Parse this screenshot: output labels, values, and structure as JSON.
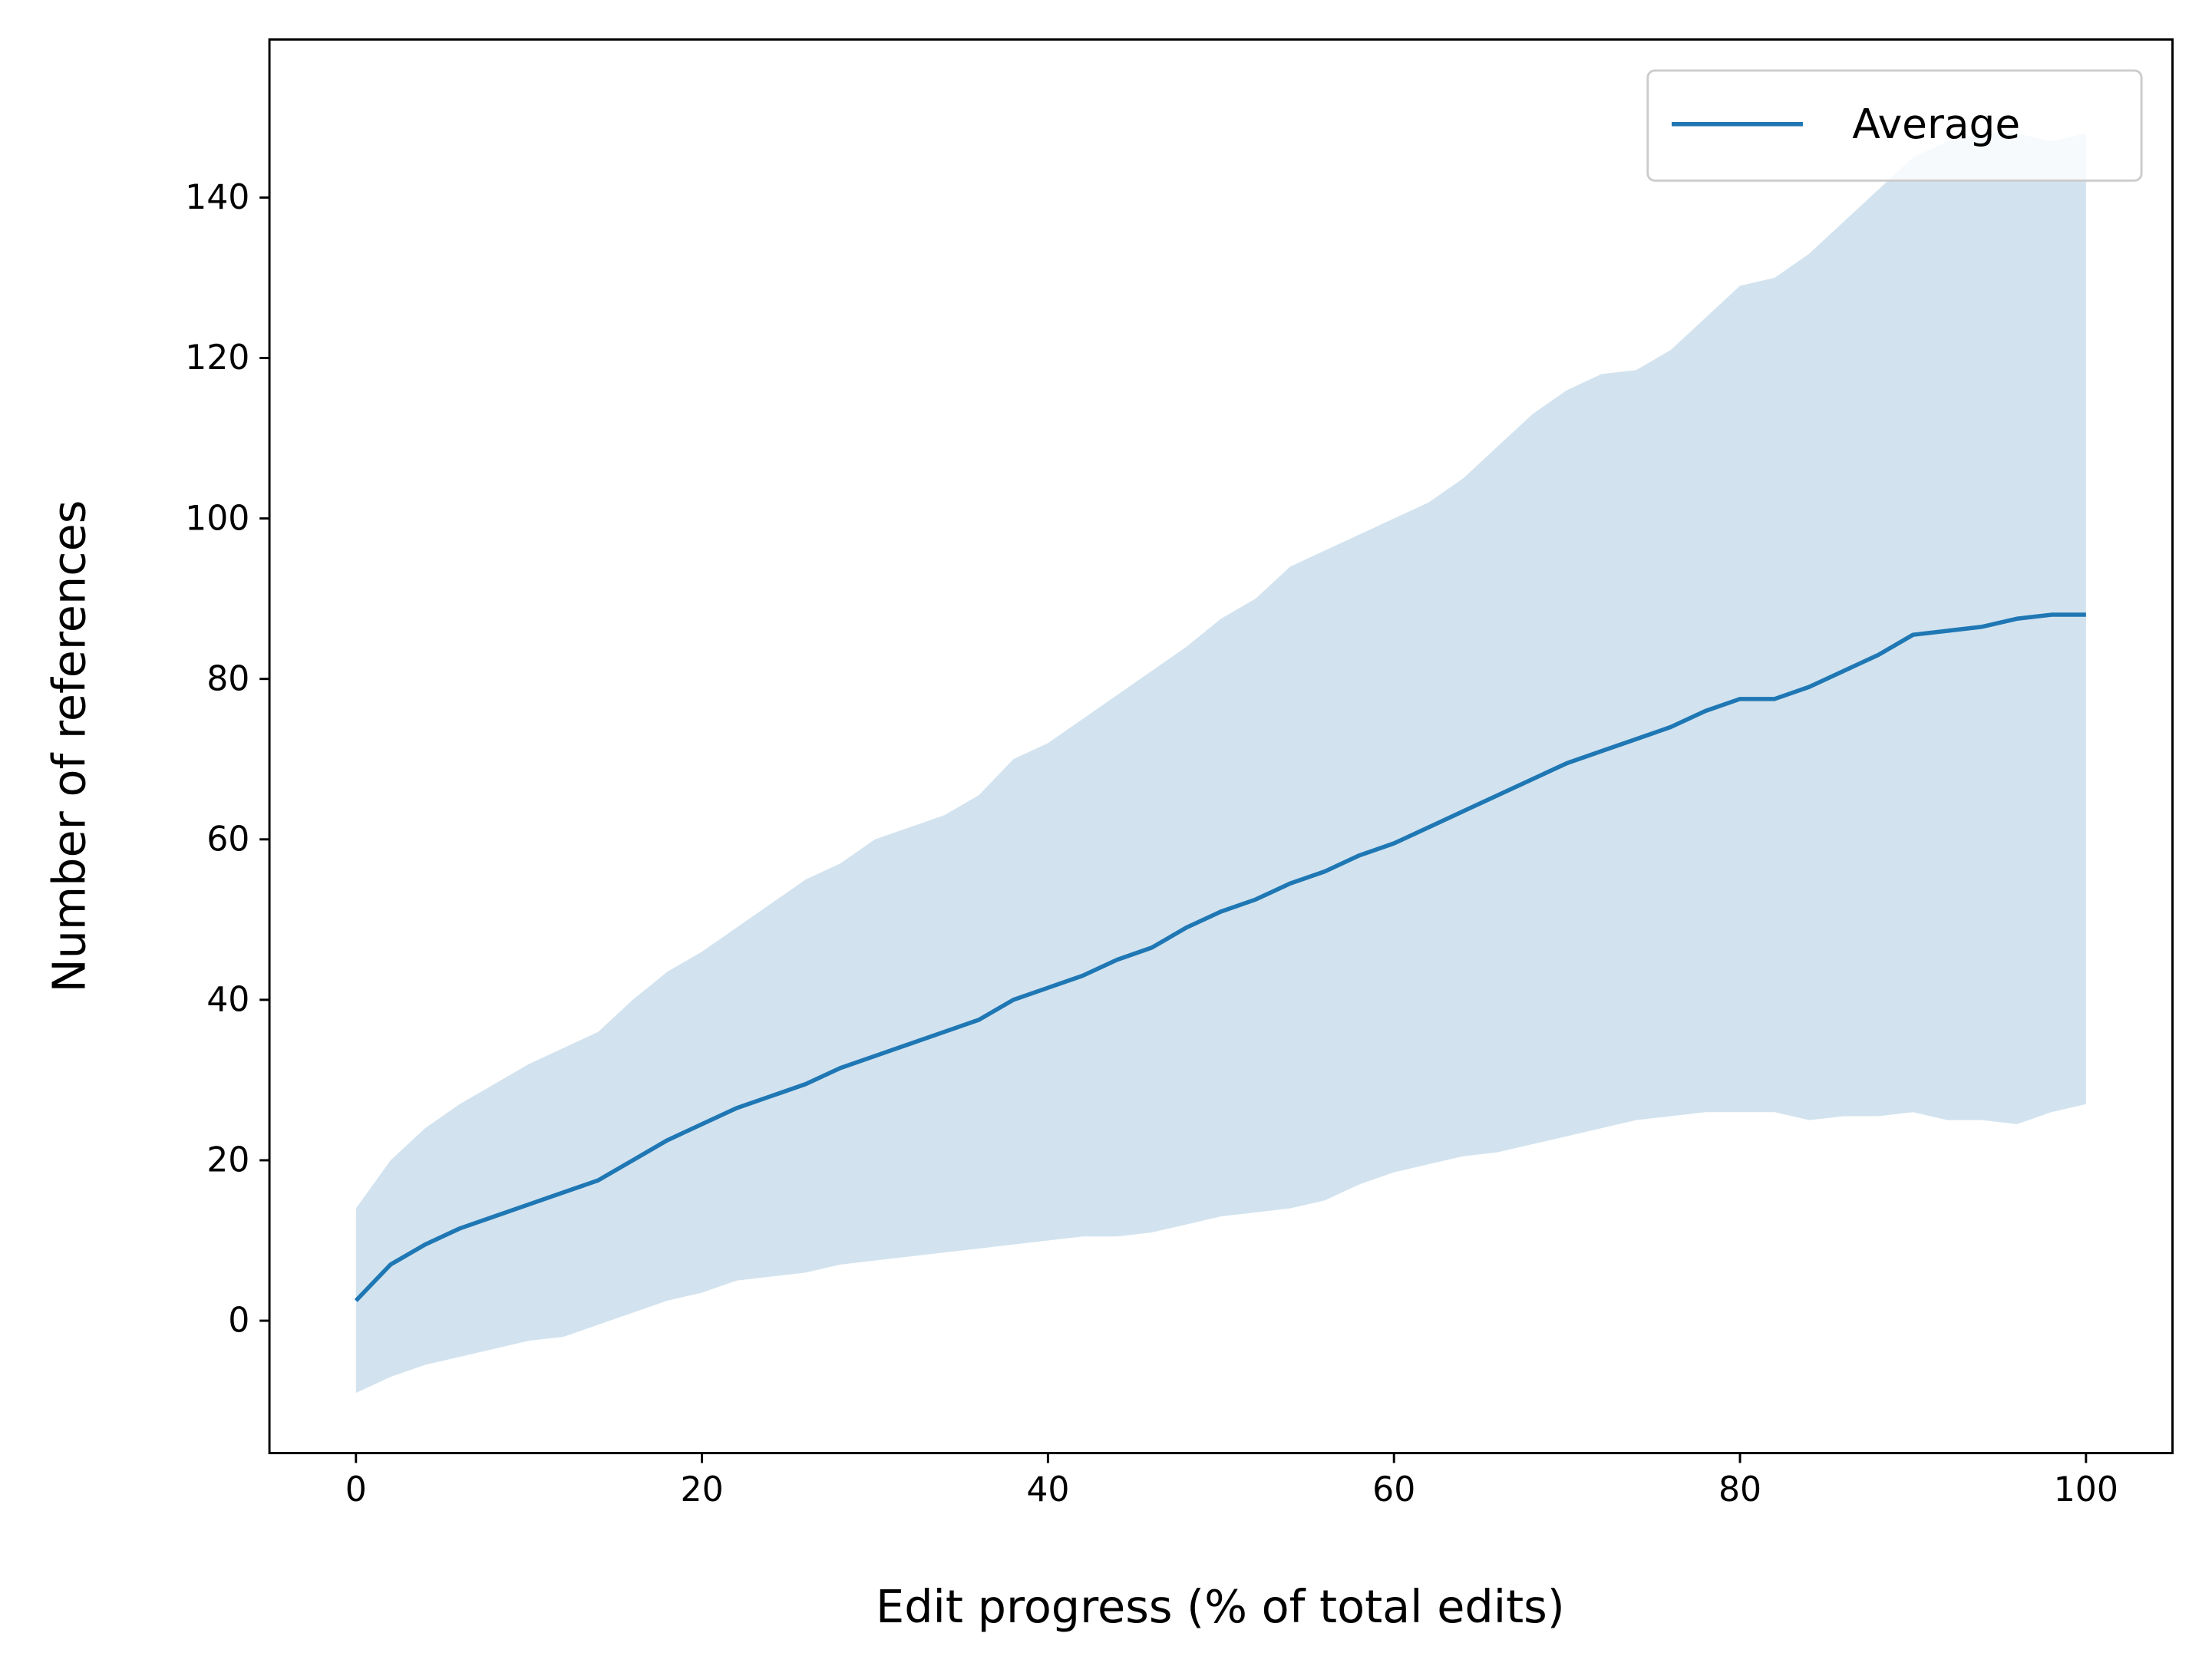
{
  "chart_data": {
    "type": "line",
    "x_label": "Edit progress (% of total edits)",
    "y_label": "Number of references",
    "xlim": [
      -5,
      105
    ],
    "ylim": [
      -16.5,
      159.7
    ],
    "xticks": [
      0,
      20,
      40,
      60,
      80,
      100
    ],
    "yticks": [
      0,
      20,
      40,
      60,
      80,
      100,
      120,
      140
    ],
    "legend": "upper right",
    "x": [
      0,
      2,
      4,
      6,
      8,
      10,
      12,
      14,
      16,
      18,
      20,
      22,
      24,
      26,
      28,
      30,
      32,
      34,
      36,
      38,
      40,
      42,
      44,
      46,
      48,
      50,
      52,
      54,
      56,
      58,
      60,
      62,
      64,
      66,
      68,
      70,
      72,
      74,
      76,
      78,
      80,
      82,
      84,
      86,
      88,
      90,
      92,
      94,
      96,
      98,
      100
    ],
    "band": {
      "color": "#d2e3ef",
      "upper": [
        14,
        20,
        24,
        27,
        29.5,
        32,
        34,
        36,
        40,
        43.5,
        46,
        49,
        52,
        55,
        57,
        60,
        61.5,
        63,
        65.5,
        70,
        72,
        75,
        78,
        81,
        84,
        87.5,
        90,
        94,
        96,
        98,
        100,
        102,
        105,
        109,
        113,
        116,
        118,
        118.5,
        121,
        125,
        129,
        130,
        133,
        137,
        141,
        145,
        147,
        148,
        148,
        147,
        148
      ],
      "lower": [
        -9,
        -7,
        -5.5,
        -4.5,
        -3.5,
        -2.5,
        -2,
        -0.5,
        1,
        2.5,
        3.5,
        5,
        5.5,
        6,
        7,
        7.5,
        8,
        8.5,
        9,
        9.5,
        10,
        10.5,
        10.5,
        11,
        12,
        13,
        13.5,
        14,
        15,
        17,
        18.5,
        19.5,
        20.5,
        21,
        22,
        23,
        24,
        25,
        25.5,
        26,
        26,
        26,
        25,
        25.5,
        25.5,
        26,
        25,
        25,
        24.5,
        26,
        27
      ]
    },
    "series": [
      {
        "name": "Average",
        "color": "#1f77b4",
        "values": [
          2.5,
          7,
          9.5,
          11.5,
          13,
          14.5,
          16,
          17.5,
          20,
          22.5,
          24.5,
          26.5,
          28,
          29.5,
          31.5,
          33,
          34.5,
          36,
          37.5,
          40,
          41.5,
          43,
          45,
          46.5,
          49,
          51,
          52.5,
          54.5,
          56,
          58,
          59.5,
          61.5,
          63.5,
          65.5,
          67.5,
          69.5,
          71,
          72.5,
          74,
          76,
          77.5,
          77.5,
          79,
          81,
          83,
          85.5,
          86,
          86.5,
          87.5,
          88,
          88
        ]
      }
    ]
  }
}
